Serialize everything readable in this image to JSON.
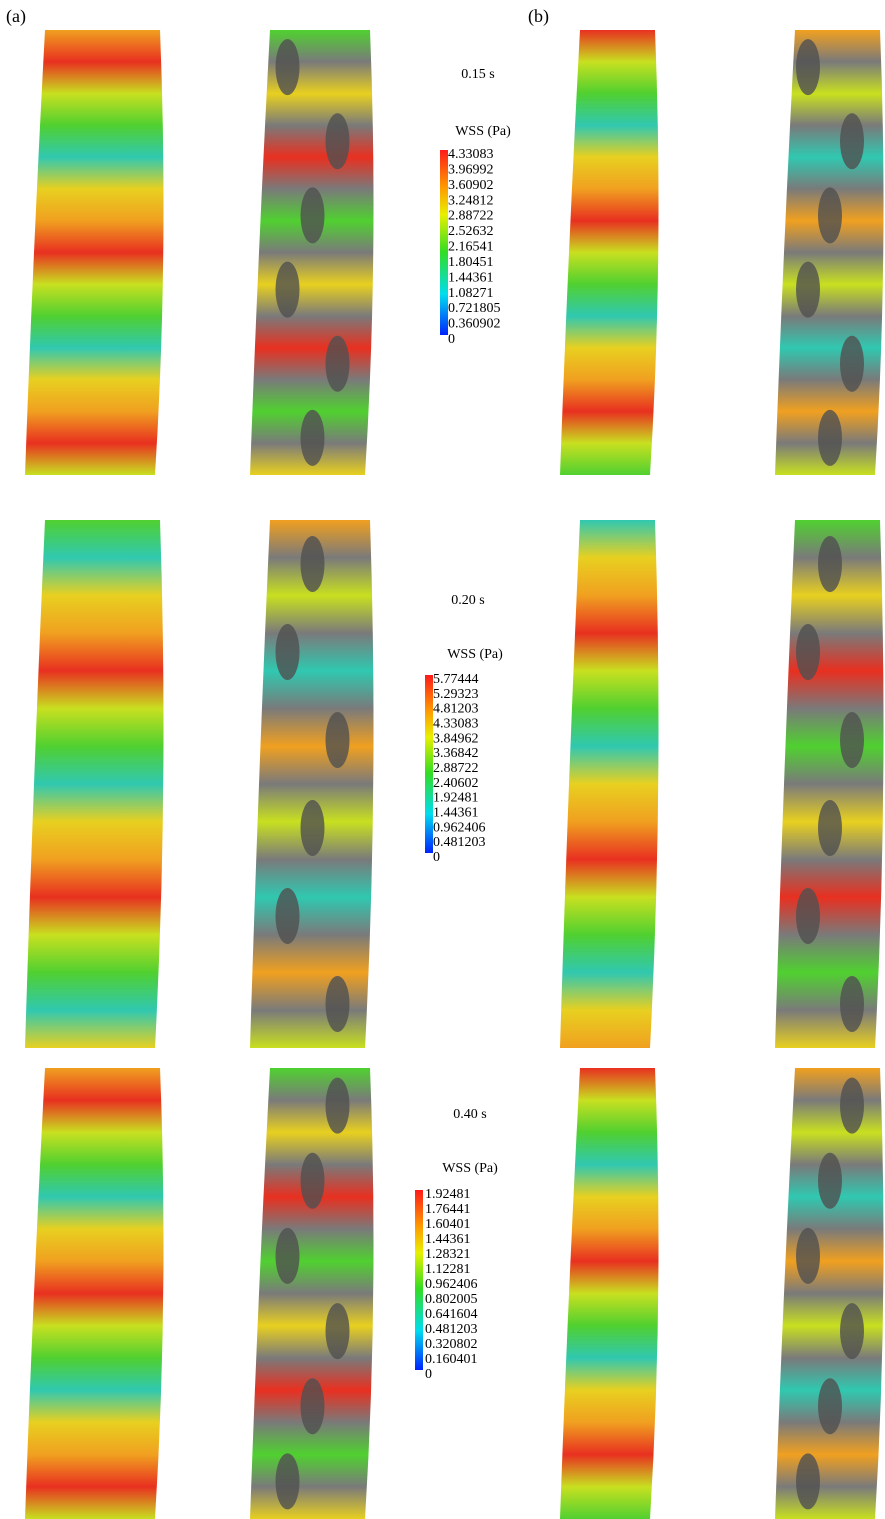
{
  "panels": {
    "a": "(a)",
    "b": "(b)"
  },
  "rows": [
    {
      "time": "0.15 s",
      "colorbar": {
        "title": "WSS (Pa)",
        "ticks": [
          "4.33083",
          "3.96992",
          "3.60902",
          "3.24812",
          "2.88722",
          "2.52632",
          "2.16541",
          "1.80451",
          "1.44361",
          "1.08271",
          "0.721805",
          "0.360902",
          "0"
        ]
      }
    },
    {
      "time": "0.20 s",
      "colorbar": {
        "title": "WSS (Pa)",
        "ticks": [
          "5.77444",
          "5.29323",
          "4.81203",
          "4.33083",
          "3.84962",
          "3.36842",
          "2.88722",
          "2.40602",
          "1.92481",
          "1.44361",
          "0.962406",
          "0.481203",
          "0"
        ]
      }
    },
    {
      "time": "0.40 s",
      "colorbar": {
        "title": "WSS (Pa)",
        "ticks": [
          "1.92481",
          "1.76441",
          "1.60401",
          "1.44361",
          "1.28321",
          "1.12281",
          "0.962406",
          "0.802005",
          "0.641604",
          "0.481203",
          "0.320802",
          "0.160401",
          "0"
        ]
      }
    }
  ]
}
